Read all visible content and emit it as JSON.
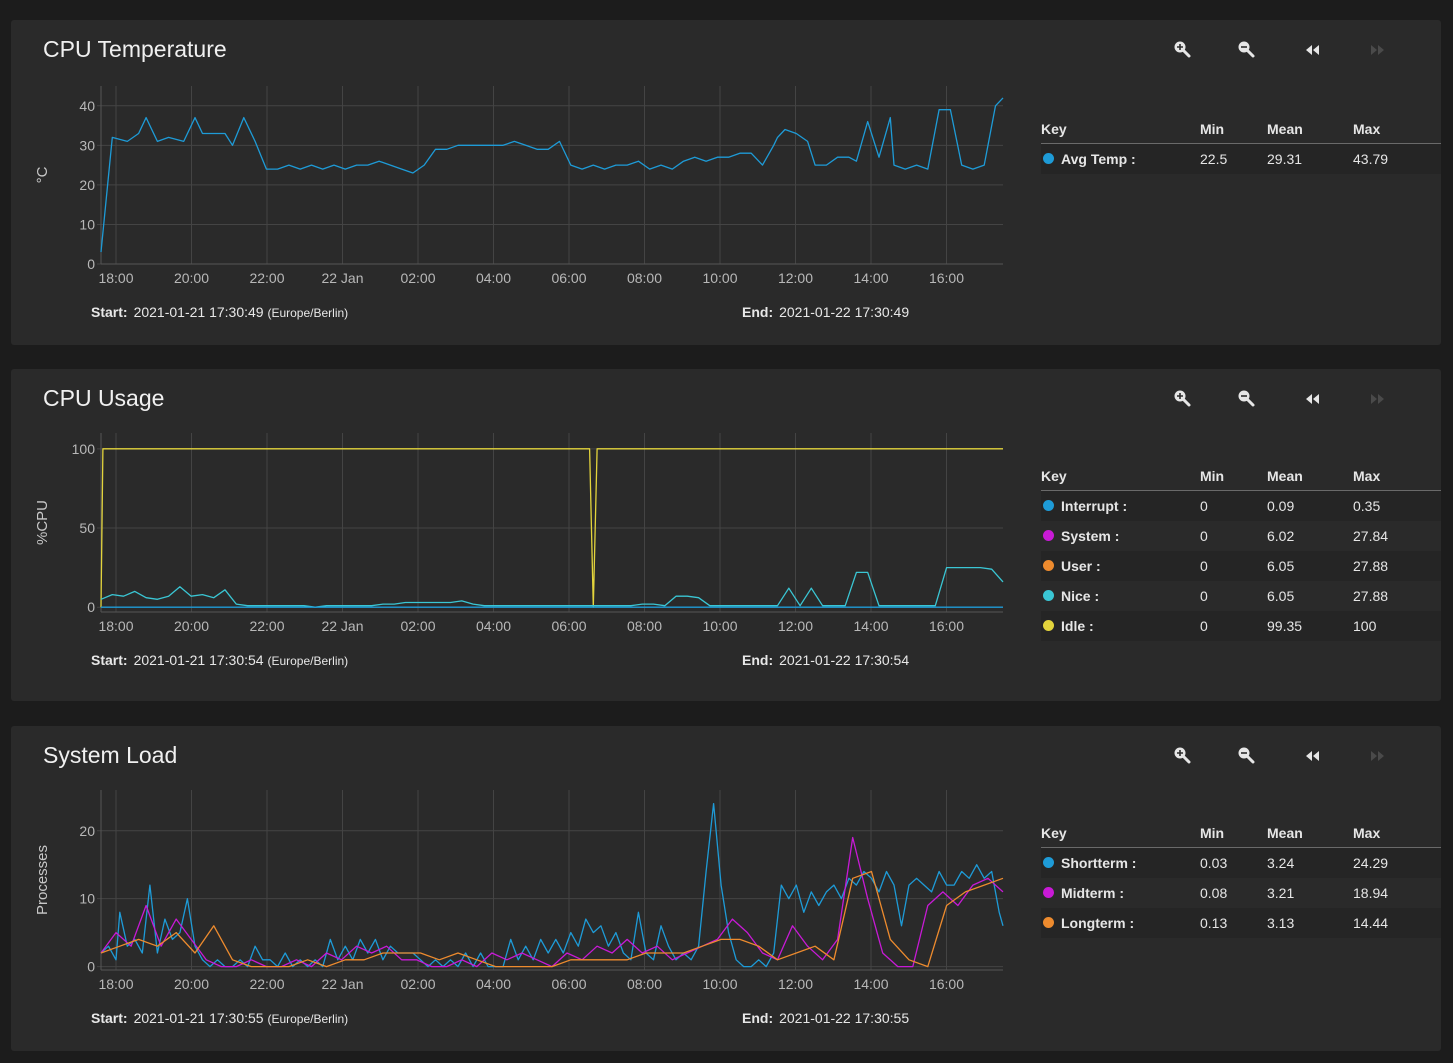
{
  "toolbar": {
    "icons": [
      "zoom-in-icon",
      "zoom-out-icon",
      "step-back-icon",
      "step-forward-icon"
    ]
  },
  "xticks": [
    "18:00",
    "20:00",
    "22:00",
    "22 Jan",
    "02:00",
    "04:00",
    "06:00",
    "08:00",
    "10:00",
    "12:00",
    "14:00",
    "16:00"
  ],
  "legend_header": {
    "key": "Key",
    "min": "Min",
    "mean": "Mean",
    "max": "Max"
  },
  "footer_labels": {
    "start": "Start:",
    "end": "End:",
    "tz": "(Europe/Berlin)"
  },
  "cards": [
    {
      "title": "CPU Temperature",
      "start": "2021-01-21 17:30:49",
      "end": "2021-01-22 17:30:49",
      "legend": [
        {
          "name": "Avg Temp :",
          "color": "#1e9bd7",
          "min": "22.5",
          "mean": "29.31",
          "max": "43.79"
        }
      ]
    },
    {
      "title": "CPU Usage",
      "start": "2021-01-21 17:30:54",
      "end": "2021-01-22 17:30:54",
      "legend": [
        {
          "name": "Interrupt :",
          "color": "#1e9bd7",
          "min": "0",
          "mean": "0.09",
          "max": "0.35"
        },
        {
          "name": "System :",
          "color": "#c81ad6",
          "min": "0",
          "mean": "6.02",
          "max": "27.84"
        },
        {
          "name": "User :",
          "color": "#ed8b2e",
          "min": "0",
          "mean": "6.05",
          "max": "27.88"
        },
        {
          "name": "Nice :",
          "color": "#3ac6d4",
          "min": "0",
          "mean": "6.05",
          "max": "27.88"
        },
        {
          "name": "Idle :",
          "color": "#e3d43c",
          "min": "0",
          "mean": "99.35",
          "max": "100"
        }
      ]
    },
    {
      "title": "System Load",
      "start": "2021-01-21 17:30:55",
      "end": "2021-01-22 17:30:55",
      "legend": [
        {
          "name": "Shortterm :",
          "color": "#1e9bd7",
          "min": "0.03",
          "mean": "3.24",
          "max": "24.29"
        },
        {
          "name": "Midterm :",
          "color": "#c81ad6",
          "min": "0.08",
          "mean": "3.21",
          "max": "18.94"
        },
        {
          "name": "Longterm :",
          "color": "#ed8b2e",
          "min": "0.13",
          "mean": "3.13",
          "max": "14.44"
        }
      ]
    }
  ],
  "chart_data": [
    {
      "type": "line",
      "ylabel": "°C",
      "ylim": [
        0,
        45
      ],
      "yticks": [
        0,
        10,
        20,
        30,
        40
      ],
      "x_hours": [
        0,
        0.3,
        0.7,
        1.0,
        1.2,
        1.5,
        1.8,
        2.2,
        2.5,
        2.7,
        3.0,
        3.3,
        3.5,
        3.8,
        4.1,
        4.4,
        4.7,
        5.0,
        5.3,
        5.6,
        5.9,
        6.2,
        6.5,
        6.8,
        7.1,
        7.4,
        7.7,
        8.0,
        8.3,
        8.6,
        8.9,
        9.2,
        9.5,
        9.8,
        10.1,
        10.4,
        10.7,
        11.0,
        11.3,
        11.6,
        11.9,
        12.2,
        12.5,
        12.8,
        13.1,
        13.4,
        13.7,
        14.0,
        14.3,
        14.6,
        14.9,
        15.2,
        15.5,
        15.8,
        16.1,
        16.4,
        16.7,
        17.0,
        17.3,
        17.6,
        17.9,
        18.0,
        18.2,
        18.5,
        18.8,
        19.0,
        19.3,
        19.6,
        19.9,
        20.1,
        20.4,
        20.7,
        21.0,
        21.1,
        21.4,
        21.7,
        22.0,
        22.3,
        22.6,
        22.9,
        23.2,
        23.5,
        23.8,
        24.0
      ],
      "series": [
        {
          "color": "#1e9bd7",
          "values": [
            3,
            32,
            31,
            33,
            37,
            31,
            32,
            31,
            37,
            33,
            33,
            33,
            30,
            37,
            31,
            24,
            24,
            25,
            24,
            25,
            24,
            25,
            24,
            25,
            25,
            26,
            25,
            24,
            23,
            25,
            29,
            29,
            30,
            30,
            30,
            30,
            30,
            31,
            30,
            29,
            29,
            31,
            25,
            24,
            25,
            24,
            25,
            25,
            26,
            24,
            25,
            24,
            26,
            27,
            26,
            27,
            27,
            28,
            28,
            25,
            30,
            32,
            34,
            33,
            31,
            25,
            25,
            27,
            27,
            26,
            36,
            27,
            37,
            25,
            24,
            25,
            24,
            39,
            39,
            25,
            24,
            25,
            40,
            42
          ]
        }
      ]
    },
    {
      "type": "line",
      "ylabel": "%CPU",
      "ylim": [
        -3,
        110
      ],
      "yticks": [
        0,
        50,
        100
      ],
      "series": [
        {
          "name": "Idle",
          "color": "#e3d43c",
          "x_hours": [
            0,
            0.05,
            13,
            13.1,
            13.2,
            24
          ],
          "values": [
            0,
            100,
            100,
            0,
            100,
            100
          ]
        },
        {
          "name": "Nice",
          "color": "#3ac6d4",
          "x_hours": [
            0,
            0.3,
            0.6,
            0.9,
            1.2,
            1.5,
            1.8,
            2.1,
            2.4,
            2.7,
            3.0,
            3.3,
            3.6,
            3.9,
            4.2,
            4.5,
            4.8,
            5.1,
            5.4,
            5.7,
            6.0,
            6.3,
            6.6,
            6.9,
            7.2,
            7.5,
            7.8,
            8.1,
            8.4,
            8.7,
            9.0,
            9.3,
            9.6,
            9.9,
            10.2,
            10.5,
            10.8,
            11.1,
            11.4,
            11.7,
            12.0,
            12.3,
            12.6,
            12.9,
            13.2,
            13.5,
            13.8,
            14.1,
            14.4,
            14.7,
            15.0,
            15.3,
            15.6,
            15.9,
            16.2,
            16.5,
            16.8,
            17.1,
            17.4,
            17.7,
            18.0,
            18.3,
            18.6,
            18.9,
            19.2,
            19.5,
            19.8,
            20.1,
            20.4,
            20.7,
            21.0,
            21.3,
            21.6,
            21.9,
            22.2,
            22.5,
            22.8,
            23.1,
            23.4,
            23.7,
            24.0
          ],
          "values": [
            5,
            8,
            7,
            10,
            6,
            5,
            7,
            13,
            7,
            8,
            6,
            11,
            2,
            1,
            1,
            1,
            1,
            1,
            1,
            0,
            1,
            1,
            1,
            1,
            1,
            2,
            2,
            3,
            3,
            3,
            3,
            3,
            4,
            2,
            1,
            1,
            1,
            1,
            1,
            1,
            1,
            1,
            1,
            1,
            1,
            1,
            1,
            1,
            2,
            2,
            1,
            7,
            7,
            6,
            1,
            1,
            1,
            1,
            1,
            1,
            1,
            12,
            1,
            12,
            1,
            1,
            1,
            22,
            22,
            1,
            1,
            1,
            1,
            1,
            1,
            25,
            25,
            25,
            25,
            24,
            16
          ]
        },
        {
          "name": "Interrupt",
          "color": "#1e9bd7",
          "x_hours": [
            0,
            24
          ],
          "values": [
            0,
            0
          ]
        }
      ]
    },
    {
      "type": "line",
      "ylabel": "Processes",
      "ylim": [
        -0.5,
        26
      ],
      "yticks": [
        0,
        10,
        20
      ],
      "series": [
        {
          "name": "Shortterm",
          "color": "#1e9bd7",
          "x_hours": [
            0,
            0.2,
            0.4,
            0.5,
            0.7,
            0.9,
            1.1,
            1.3,
            1.5,
            1.7,
            1.9,
            2.1,
            2.3,
            2.5,
            2.7,
            2.9,
            3.1,
            3.3,
            3.5,
            3.7,
            3.9,
            4.1,
            4.3,
            4.5,
            4.7,
            4.9,
            5.1,
            5.3,
            5.5,
            5.7,
            5.9,
            6.1,
            6.3,
            6.5,
            6.7,
            6.9,
            7.1,
            7.3,
            7.5,
            7.7,
            7.9,
            8.1,
            8.3,
            8.5,
            8.7,
            8.9,
            9.1,
            9.3,
            9.5,
            9.7,
            9.9,
            10.1,
            10.3,
            10.5,
            10.7,
            10.9,
            11.1,
            11.3,
            11.5,
            11.7,
            11.9,
            12.1,
            12.3,
            12.5,
            12.7,
            12.9,
            13.1,
            13.3,
            13.5,
            13.7,
            13.9,
            14.1,
            14.3,
            14.5,
            14.7,
            14.9,
            15.1,
            15.3,
            15.5,
            15.7,
            15.9,
            16.1,
            16.3,
            16.5,
            16.7,
            16.9,
            17.1,
            17.3,
            17.5,
            17.7,
            17.9,
            18.1,
            18.3,
            18.5,
            18.7,
            18.9,
            19.1,
            19.3,
            19.5,
            19.7,
            19.9,
            20.1,
            20.3,
            20.5,
            20.7,
            20.9,
            21.1,
            21.3,
            21.5,
            21.7,
            21.9,
            22.1,
            22.3,
            22.5,
            22.7,
            22.9,
            23.1,
            23.3,
            23.5,
            23.7,
            23.9,
            24.0
          ],
          "values": [
            2,
            3,
            1,
            8,
            3,
            4,
            2,
            12,
            2,
            7,
            4,
            5,
            10,
            3,
            1,
            0,
            1,
            0,
            0,
            1,
            0,
            3,
            1,
            1,
            0,
            2,
            0,
            1,
            0,
            1,
            0,
            4,
            1,
            3,
            1,
            4,
            2,
            4,
            1,
            3,
            2,
            2,
            2,
            1,
            0,
            1,
            0,
            1,
            0,
            2,
            0,
            2,
            0,
            0,
            0,
            4,
            1,
            3,
            1,
            4,
            2,
            4,
            2,
            5,
            3,
            7,
            5,
            6,
            3,
            5,
            2,
            1,
            8,
            2,
            1,
            6,
            3,
            1,
            2,
            1,
            3,
            14,
            24,
            12,
            5,
            1,
            0,
            0,
            1,
            0,
            2,
            12,
            10,
            12,
            8,
            11,
            9,
            11,
            12,
            10,
            13,
            12,
            14,
            13,
            11,
            14,
            12,
            6,
            12,
            13,
            12,
            11,
            14,
            12,
            12,
            14,
            13,
            15,
            13,
            14,
            8,
            6
          ]
        },
        {
          "name": "Midterm",
          "color": "#c81ad6",
          "x_hours": [
            0,
            0.4,
            0.8,
            1.2,
            1.6,
            2.0,
            2.4,
            2.8,
            3.2,
            3.6,
            4.0,
            4.4,
            4.8,
            5.2,
            5.6,
            6.0,
            6.4,
            6.8,
            7.2,
            7.6,
            8.0,
            8.4,
            8.8,
            9.2,
            9.6,
            10.0,
            10.4,
            10.8,
            11.2,
            11.6,
            12.0,
            12.4,
            12.8,
            13.2,
            13.6,
            14.0,
            14.4,
            14.8,
            15.2,
            15.6,
            16.0,
            16.4,
            16.8,
            17.2,
            17.6,
            18.0,
            18.4,
            18.8,
            19.2,
            19.6,
            20.0,
            20.4,
            20.8,
            21.2,
            21.6,
            22.0,
            22.4,
            22.8,
            23.2,
            23.6,
            24.0
          ],
          "values": [
            2,
            5,
            3,
            9,
            3,
            7,
            4,
            1,
            0,
            0,
            1,
            0,
            0,
            1,
            0,
            2,
            1,
            3,
            2,
            3,
            1,
            1,
            0,
            0,
            1,
            0,
            2,
            1,
            2,
            1,
            0,
            2,
            1,
            3,
            2,
            4,
            2,
            3,
            1,
            2,
            3,
            4,
            7,
            5,
            2,
            1,
            6,
            3,
            1,
            4,
            19,
            10,
            2,
            0,
            0,
            9,
            11,
            9,
            12,
            13,
            11
          ]
        },
        {
          "name": "Longterm",
          "color": "#ed8b2e",
          "x_hours": [
            0,
            0.5,
            1.0,
            1.5,
            2.0,
            2.5,
            3.0,
            3.5,
            4.0,
            4.5,
            5.0,
            5.5,
            6.0,
            6.5,
            7.0,
            7.5,
            8.0,
            8.5,
            9.0,
            9.5,
            10.0,
            10.5,
            11.0,
            11.5,
            12.0,
            12.5,
            13.0,
            13.5,
            14.0,
            14.5,
            15.0,
            15.5,
            16.0,
            16.5,
            17.0,
            17.5,
            18.0,
            18.5,
            19.0,
            19.5,
            20.0,
            20.5,
            21.0,
            21.5,
            22.0,
            22.5,
            23.0,
            23.5,
            24.0
          ],
          "values": [
            2,
            3,
            4,
            3,
            5,
            2,
            6,
            1,
            0,
            0,
            0,
            1,
            0,
            1,
            1,
            2,
            2,
            2,
            1,
            2,
            1,
            0,
            0,
            0,
            0,
            1,
            1,
            1,
            1,
            2,
            2,
            2,
            3,
            4,
            4,
            3,
            1,
            2,
            3,
            1,
            13,
            14,
            4,
            1,
            0,
            9,
            11,
            12,
            13
          ]
        }
      ]
    }
  ]
}
